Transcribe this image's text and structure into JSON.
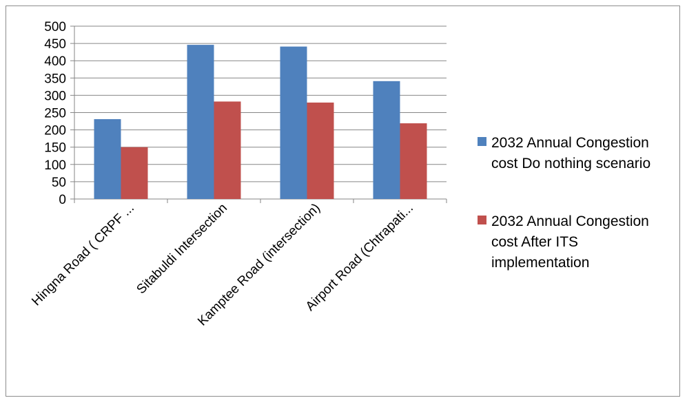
{
  "chart_data": {
    "type": "bar",
    "title": "",
    "xlabel": "",
    "ylabel": "",
    "categories": [
      "Hingna Road ( CRPF ...",
      "Sitabuldi Intersection",
      "Kamptee Road (intersection)",
      "Airport Road (Chtrapati..."
    ],
    "series": [
      {
        "name": "2032 Annual Congestion cost Do nothing scenario",
        "values": [
          231,
          446,
          441,
          341
        ],
        "color": "#4f81bd"
      },
      {
        "name": "2032 Annual Congestion cost After ITS implementation",
        "values": [
          150,
          282,
          279,
          219
        ],
        "color": "#c0504d"
      }
    ],
    "ylim": [
      0,
      500
    ],
    "yticks": [
      "0",
      "50",
      "100",
      "150",
      "200",
      "250",
      "300",
      "350",
      "400",
      "450",
      "500"
    ],
    "grid": true,
    "legend_position": "right",
    "legend": [
      {
        "lines": [
          "2032 Annual Congestion",
          "cost Do nothing scenario"
        ]
      },
      {
        "lines": [
          "2032 Annual Congestion",
          "cost After ITS",
          "implementation"
        ]
      }
    ]
  }
}
